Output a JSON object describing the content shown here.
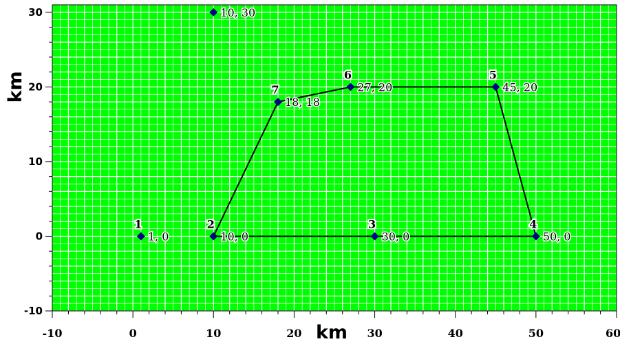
{
  "chart_data": {
    "type": "scatter",
    "xlabel": "km",
    "ylabel": "km",
    "xlim": [
      -10,
      60
    ],
    "ylim": [
      -10,
      31
    ],
    "x_ticks": [
      "-10",
      "0",
      "10",
      "20",
      "30",
      "40",
      "50",
      "60"
    ],
    "y_ticks": [
      "30",
      "20",
      "10",
      "0",
      "-10"
    ],
    "grid": true,
    "grid_minor_step": 1,
    "grid_major_step": 2,
    "colors": {
      "background": "#00ff00",
      "grid_minor": "#ffffff",
      "grid_major": "#ffffff",
      "marker": "#00008b",
      "polygon": "#000000"
    },
    "points": [
      {
        "id": "1",
        "x": 1,
        "y": 0,
        "label": "1, 0"
      },
      {
        "id": "2",
        "x": 10,
        "y": 0,
        "label": "10, 0"
      },
      {
        "id": "3",
        "x": 30,
        "y": 0,
        "label": "30, 0"
      },
      {
        "id": "4",
        "x": 50,
        "y": 0,
        "label": "50, 0"
      },
      {
        "id": "5",
        "x": 45,
        "y": 20,
        "label": "45, 20"
      },
      {
        "id": "6",
        "x": 27,
        "y": 20,
        "label": "27, 20"
      },
      {
        "id": "7",
        "x": 18,
        "y": 18,
        "label": "18, 18"
      },
      {
        "id": "",
        "x": 10,
        "y": 30,
        "label": "10, 30"
      }
    ],
    "polygon": [
      [
        10,
        0
      ],
      [
        50,
        0
      ],
      [
        45,
        20
      ],
      [
        27,
        20
      ],
      [
        18,
        18
      ],
      [
        10,
        0
      ]
    ]
  }
}
